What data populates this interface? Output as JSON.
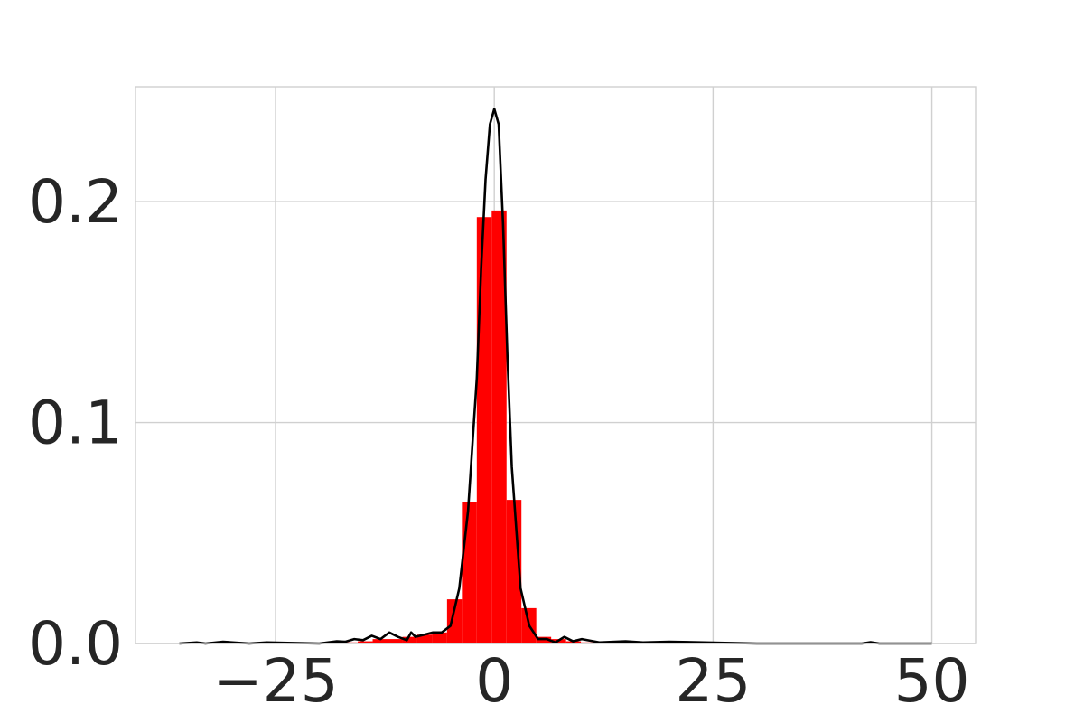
{
  "chart_data": {
    "type": "bar",
    "subtype": "histogram_with_density_curve",
    "title": "",
    "xlabel": "",
    "ylabel": "",
    "xlim": [
      -41,
      55
    ],
    "ylim": [
      0,
      0.252
    ],
    "grid": true,
    "legend": "none",
    "x_ticks": [
      {
        "value": -25,
        "label": "−25"
      },
      {
        "value": 0,
        "label": "0"
      },
      {
        "value": 25,
        "label": "25"
      },
      {
        "value": 50,
        "label": "50"
      }
    ],
    "y_ticks": [
      {
        "value": 0.0,
        "label": "0.0"
      },
      {
        "value": 0.1,
        "label": "0.1"
      },
      {
        "value": 0.2,
        "label": "0.2"
      }
    ],
    "bin_width": 1.7,
    "bin_starts": [
      -17.3,
      -15.6,
      -13.9,
      -12.2,
      -10.5,
      -8.8,
      -7.1,
      -5.4,
      -3.7,
      -2.0,
      -0.3,
      1.4,
      3.1,
      4.8,
      6.5,
      8.2,
      9.9
    ],
    "bin_values": [
      0.0005,
      0.001,
      0.002,
      0.002,
      0.003,
      0.004,
      0.005,
      0.02,
      0.064,
      0.193,
      0.196,
      0.065,
      0.016,
      0.003,
      0.002,
      0.001,
      0.0005
    ],
    "density_curve": {
      "x": [
        -36,
        -34,
        -33,
        -31,
        -28,
        -26,
        -20,
        -18,
        -17,
        -16,
        -15,
        -14,
        -13,
        -12,
        -11,
        -10,
        -9.5,
        -9,
        -8,
        -7,
        -6,
        -5,
        -4,
        -3,
        -2,
        -1.5,
        -1,
        -0.5,
        0,
        0.5,
        1,
        1.5,
        2,
        3,
        4,
        5,
        6,
        7,
        8,
        9,
        10,
        12,
        15,
        17,
        20,
        30,
        42,
        43,
        44,
        50
      ],
      "y": [
        0,
        0.0005,
        0,
        0.0008,
        0,
        0.0005,
        0,
        0.001,
        0.0008,
        0.002,
        0.0015,
        0.0035,
        0.002,
        0.005,
        0.003,
        0.0015,
        0.005,
        0.003,
        0.004,
        0.005,
        0.005,
        0.008,
        0.025,
        0.06,
        0.12,
        0.17,
        0.21,
        0.235,
        0.242,
        0.235,
        0.19,
        0.13,
        0.08,
        0.025,
        0.008,
        0.002,
        0.002,
        0.0005,
        0.003,
        0.001,
        0.002,
        0.0005,
        0.001,
        0.0005,
        0.0008,
        0,
        0,
        0.0006,
        0,
        0
      ]
    },
    "colors": {
      "bars": "#ff0000",
      "curve": "#000000",
      "grid": "#d0d0d0",
      "text": "#262626",
      "background": "#ffffff"
    }
  }
}
